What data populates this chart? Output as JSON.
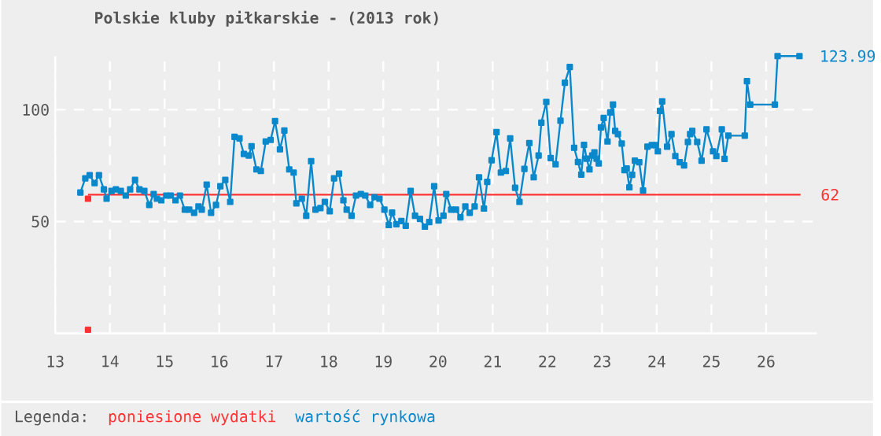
{
  "chart_data": {
    "type": "line",
    "title": "Polskie kluby piłkarskie - (2013 rok)",
    "legend_title": "Legenda:",
    "series": [
      {
        "name": "poniesione wydatki",
        "color": "#ff3333",
        "marker": "none",
        "x": [
          13.6,
          26.63
        ],
        "values": [
          62,
          62
        ]
      },
      {
        "type": "scatter",
        "color": "#ff3333",
        "x": [
          13.6,
          13.6
        ],
        "values": [
          60.2,
          1.6
        ]
      },
      {
        "name": "wartość rynkowa",
        "color": "#0a88cc",
        "x": [
          13.46,
          13.55,
          13.63,
          13.72,
          13.8,
          13.89,
          13.94,
          14.03,
          14.11,
          14.2,
          14.29,
          14.37,
          14.46,
          14.54,
          14.63,
          14.72,
          14.8,
          14.86,
          14.94,
          15.03,
          15.11,
          15.2,
          15.28,
          15.37,
          15.45,
          15.54,
          15.62,
          15.68,
          15.77,
          15.85,
          15.94,
          16.02,
          16.11,
          16.2,
          16.28,
          16.37,
          16.45,
          16.54,
          16.59,
          16.68,
          16.76,
          16.85,
          16.94,
          17.02,
          17.11,
          17.19,
          17.28,
          17.36,
          17.41,
          17.51,
          17.59,
          17.68,
          17.76,
          17.85,
          17.93,
          18.02,
          18.1,
          18.19,
          18.27,
          18.33,
          18.42,
          18.5,
          18.59,
          18.67,
          18.76,
          18.84,
          18.93,
          19.02,
          19.1,
          19.16,
          19.24,
          19.33,
          19.41,
          19.5,
          19.58,
          19.67,
          19.76,
          19.84,
          19.93,
          20.01,
          20.1,
          20.15,
          20.24,
          20.33,
          20.41,
          20.5,
          20.58,
          20.67,
          20.75,
          20.84,
          20.9,
          20.98,
          21.07,
          21.15,
          21.24,
          21.32,
          21.41,
          21.49,
          21.58,
          21.67,
          21.75,
          21.84,
          21.89,
          21.98,
          22.06,
          22.15,
          22.24,
          22.32,
          22.41,
          22.49,
          22.56,
          22.62,
          22.67,
          22.72,
          22.77,
          22.82,
          22.86,
          22.9,
          22.94,
          22.98,
          23.03,
          23.1,
          23.15,
          23.2,
          23.24,
          23.29,
          23.36,
          23.41,
          23.45,
          23.5,
          23.55,
          23.6,
          23.68,
          23.75,
          23.83,
          23.91,
          23.98,
          24.02,
          24.06,
          24.1,
          24.19,
          24.27,
          24.34,
          24.42,
          24.5,
          24.57,
          24.61,
          24.65,
          24.74,
          24.82,
          24.91,
          25.03,
          25.09,
          25.19,
          25.24,
          25.31,
          25.61,
          25.65,
          25.71,
          26.16,
          26.21,
          26.61
        ],
        "values": [
          63,
          69.3,
          70.7,
          67.2,
          70.7,
          64.4,
          60.2,
          63.7,
          64.4,
          63.7,
          61.6,
          64.4,
          68.6,
          64.4,
          63.7,
          57.4,
          62.3,
          60.2,
          59.5,
          61.6,
          61.6,
          59.5,
          61.6,
          55.3,
          55.3,
          53.9,
          56.7,
          55.3,
          66.5,
          53.9,
          57.4,
          65.8,
          68.6,
          58.8,
          87.9,
          87.2,
          80.2,
          79.5,
          83.7,
          73.3,
          72.6,
          85.8,
          86.5,
          94.9,
          82.3,
          90.7,
          73.3,
          71.9,
          58.1,
          60.2,
          52.6,
          77,
          55.3,
          56,
          58.8,
          54.6,
          69.3,
          71.4,
          59.5,
          55.3,
          52.6,
          61.6,
          62.3,
          61.6,
          57.4,
          60.9,
          60.2,
          55.3,
          48.4,
          54,
          48.8,
          50.2,
          48.1,
          63.7,
          52.6,
          51.2,
          47.7,
          49.8,
          65.8,
          50.5,
          52.6,
          62.3,
          55.3,
          55.3,
          51.9,
          56.7,
          53.9,
          56.7,
          69.8,
          55.8,
          67.7,
          77.4,
          90,
          71.9,
          72.6,
          87.2,
          65.1,
          58.8,
          73.5,
          85.1,
          69.8,
          79.5,
          94.2,
          103.5,
          78.4,
          75.6,
          95.1,
          112.1,
          119.1,
          83,
          76.6,
          71,
          84.3,
          78.1,
          73.3,
          79.5,
          80.9,
          78.1,
          76,
          92.1,
          96.3,
          85.8,
          98.8,
          102.3,
          90.5,
          89.1,
          84.9,
          73,
          73.7,
          65.3,
          70.9,
          77.2,
          76.5,
          63.9,
          83.5,
          84.2,
          84.2,
          81.4,
          99.5,
          103.7,
          83.5,
          89.1,
          79.3,
          76.5,
          75.1,
          85.6,
          89.1,
          90.5,
          85.6,
          77.2,
          91.2,
          81.4,
          79.3,
          91.2,
          78,
          88.4,
          88.4,
          112.8,
          102.3,
          102.3,
          123.99,
          123.99
        ]
      }
    ],
    "annotations": [
      {
        "text": "123.99",
        "x": 26.61,
        "y": 123.99
      },
      {
        "text": "62",
        "x": 26.63,
        "y": 62
      }
    ],
    "xlim": [
      13,
      26.93
    ],
    "ylim": [
      0,
      124
    ],
    "xticks": [
      13,
      14,
      15,
      16,
      17,
      18,
      19,
      20,
      21,
      22,
      23,
      24,
      25,
      26
    ],
    "yticks": [
      50,
      100
    ],
    "grid": true,
    "legend": "bottom",
    "marker": "square"
  }
}
